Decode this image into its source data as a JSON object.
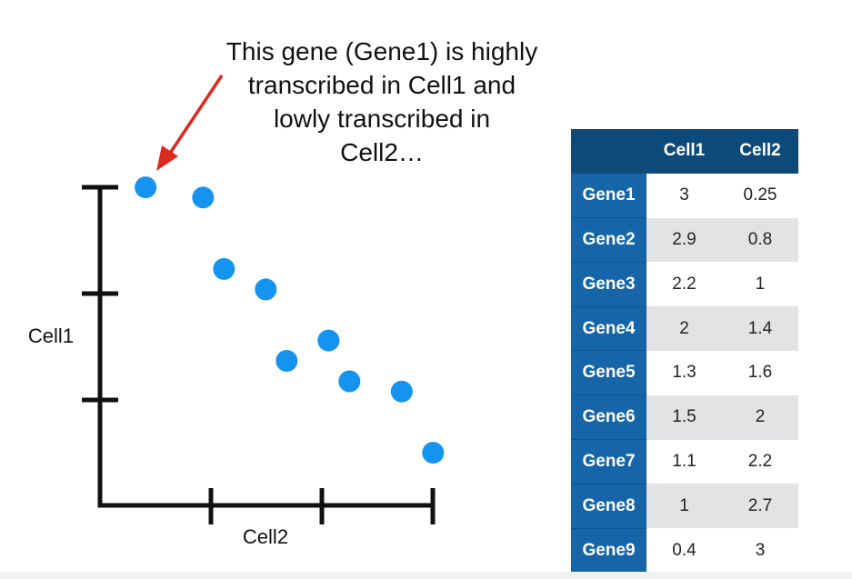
{
  "annotation": {
    "lines": [
      "This gene (Gene1) is highly",
      "transcribed in Cell1 and",
      "lowly transcribed in",
      "Cell2…"
    ]
  },
  "colors": {
    "point": "#1493f0",
    "arrow": "#dd2a1e",
    "axis": "#111111",
    "header_bg": "#0d4a7a",
    "rowhead_bg": "#1565a8",
    "stripe_bg": "#e3e3e5"
  },
  "chart_data": {
    "type": "scatter",
    "title": "",
    "xlabel": "Cell2",
    "ylabel": "Cell1",
    "xlim": [
      0,
      3
    ],
    "ylim": [
      0,
      3
    ],
    "grid": false,
    "points": [
      {
        "name": "Gene1",
        "x": 0.25,
        "y": 3
      },
      {
        "name": "Gene2",
        "x": 0.8,
        "y": 2.9
      },
      {
        "name": "Gene3",
        "x": 1,
        "y": 2.2
      },
      {
        "name": "Gene4",
        "x": 1.4,
        "y": 2
      },
      {
        "name": "Gene5",
        "x": 1.6,
        "y": 1.3
      },
      {
        "name": "Gene6",
        "x": 2,
        "y": 1.5
      },
      {
        "name": "Gene7",
        "x": 2.2,
        "y": 1.1
      },
      {
        "name": "Gene8",
        "x": 2.7,
        "y": 1
      },
      {
        "name": "Gene9",
        "x": 3,
        "y": 0.4
      }
    ]
  },
  "table": {
    "columns": [
      "",
      "Cell1",
      "Cell2"
    ],
    "rows": [
      {
        "gene": "Gene1",
        "cell1": "3",
        "cell2": "0.25"
      },
      {
        "gene": "Gene2",
        "cell1": "2.9",
        "cell2": "0.8"
      },
      {
        "gene": "Gene3",
        "cell1": "2.2",
        "cell2": "1"
      },
      {
        "gene": "Gene4",
        "cell1": "2",
        "cell2": "1.4"
      },
      {
        "gene": "Gene5",
        "cell1": "1.3",
        "cell2": "1.6"
      },
      {
        "gene": "Gene6",
        "cell1": "1.5",
        "cell2": "2"
      },
      {
        "gene": "Gene7",
        "cell1": "1.1",
        "cell2": "2.2"
      },
      {
        "gene": "Gene8",
        "cell1": "1",
        "cell2": "2.7"
      },
      {
        "gene": "Gene9",
        "cell1": "0.4",
        "cell2": "3"
      }
    ]
  }
}
